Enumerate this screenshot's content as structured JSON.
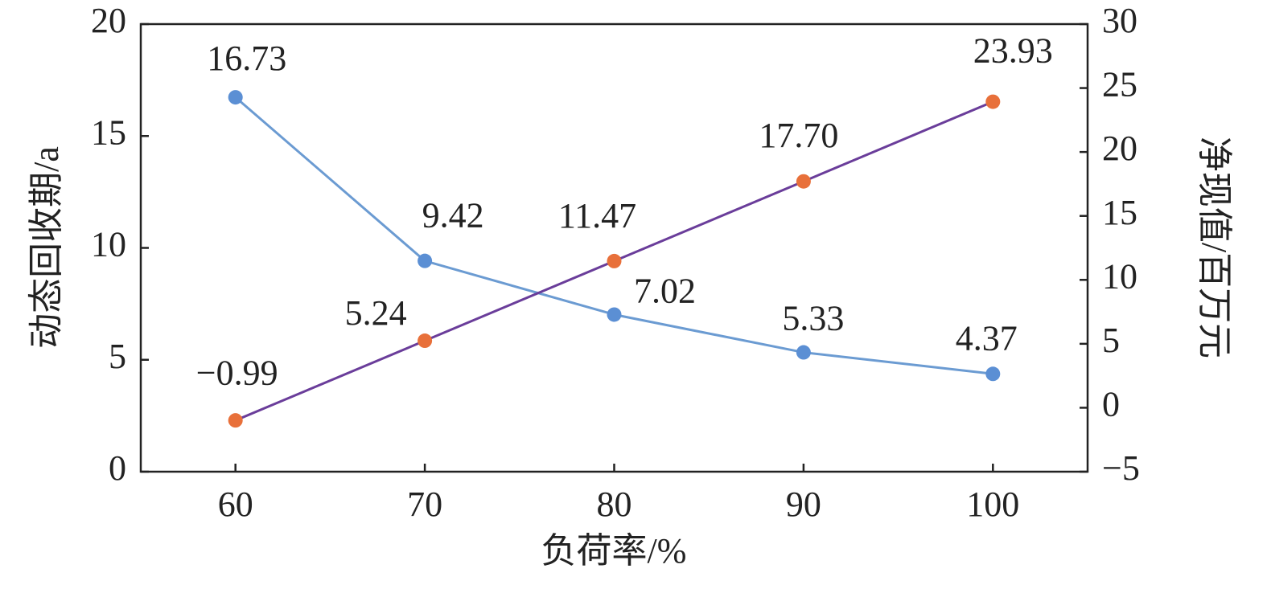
{
  "chart_data": {
    "type": "line",
    "x": [
      60,
      70,
      80,
      90,
      100
    ],
    "xlabel": "负荷率/%",
    "ylabel": "动态回收期/a",
    "y2label": "净现值/百万元",
    "xlim": [
      55,
      105
    ],
    "xticks": [
      60,
      70,
      80,
      90,
      100
    ],
    "ylim": [
      0,
      20
    ],
    "yticks": [
      0,
      5,
      10,
      15,
      20
    ],
    "y2lim": [
      -5,
      30
    ],
    "y2ticks": [
      {
        "value": -5,
        "label": "−5"
      },
      0,
      5,
      10,
      15,
      20,
      25,
      30
    ],
    "grid": false,
    "series": [
      {
        "color": "#6b9bd2",
        "marker_color": "#5b8fd4",
        "values": [
          16.73,
          9.42,
          7.02,
          5.33,
          4.37
        ],
        "value_labels": [
          "16.73",
          "9.42",
          "7.02",
          "5.33",
          "4.37"
        ]
      },
      {
        "color": "#6a3d9a",
        "marker_color": "#e8703a",
        "axis": "y2",
        "values": [
          -0.99,
          5.24,
          11.47,
          17.7,
          23.93
        ],
        "value_labels": [
          "−0.99",
          "5.24",
          "11.47",
          "17.70",
          "23.93"
        ]
      }
    ]
  }
}
